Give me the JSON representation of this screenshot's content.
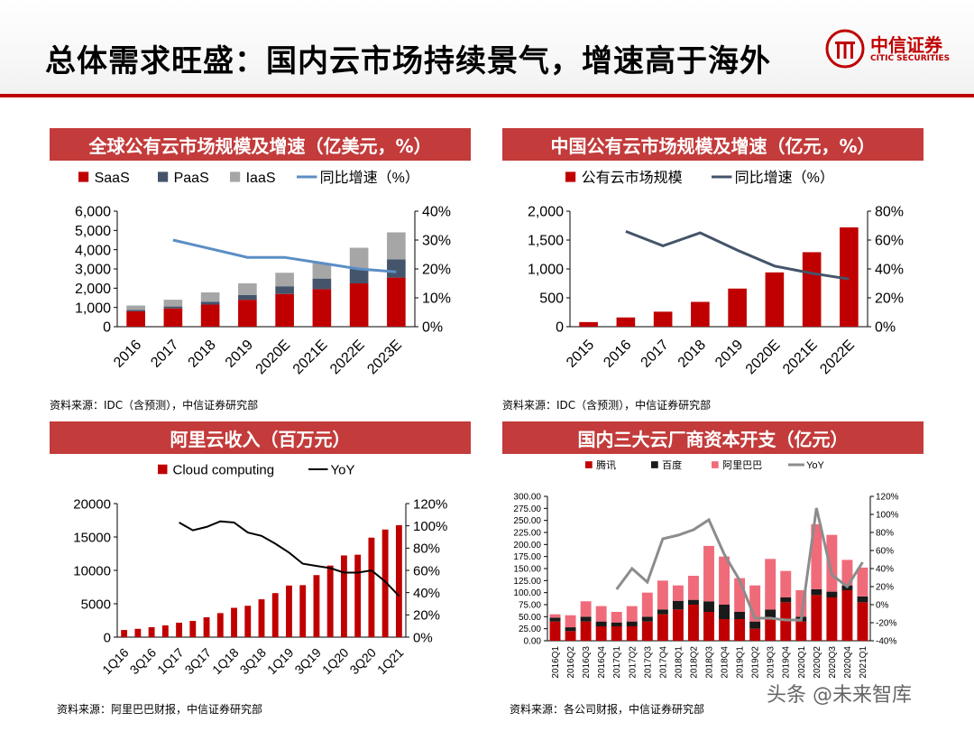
{
  "page": {
    "title": "总体需求旺盛：国内云市场持续景气，增速高于海外",
    "logo_cn": "中信证券",
    "logo_en": "CITIC SECURITIES",
    "watermark": "头条 @未来智库"
  },
  "panels": {
    "p1": {
      "title": "全球公有云市场规模及增速（亿美元，%）",
      "source": "资料来源：IDC（含预测），中信证券研究部"
    },
    "p2": {
      "title": "中国公有云市场规模及增速（亿元，%）",
      "source": "资料来源：IDC（含预测），中信证券研究部"
    },
    "p3": {
      "title": "阿里云收入（百万元）",
      "source": "资料来源：阿里巴巴财报，中信证券研究部"
    },
    "p4": {
      "title": "国内三大云厂商资本开支（亿元）",
      "source": "资料来源：各公司财报，中信证券研究部"
    }
  },
  "chart_data": [
    {
      "type": "bar",
      "stacked": true,
      "categories": [
        "2016",
        "2017",
        "2018",
        "2019",
        "2020E",
        "2021E",
        "2022E",
        "2023E"
      ],
      "series": [
        {
          "name": "SaaS",
          "kind": "bar",
          "color": "#c00000",
          "values": [
            800,
            950,
            1150,
            1400,
            1700,
            1950,
            2250,
            2550
          ]
        },
        {
          "name": "PaaS",
          "kind": "bar",
          "color": "#44546a",
          "values": [
            70,
            100,
            150,
            250,
            400,
            550,
            750,
            950
          ]
        },
        {
          "name": "IaaS",
          "kind": "bar",
          "color": "#a6a6a6",
          "values": [
            230,
            350,
            480,
            600,
            700,
            800,
            1100,
            1400
          ]
        },
        {
          "name": "同比增速（%）",
          "kind": "line",
          "axis": "right",
          "color": "#5b8ec4",
          "values": [
            null,
            30,
            27,
            24,
            24,
            22,
            20,
            19
          ]
        }
      ],
      "yleft": {
        "min": 0,
        "max": 6000,
        "ticks": [
          "0",
          "1,000",
          "2,000",
          "3,000",
          "4,000",
          "5,000",
          "6,000"
        ]
      },
      "yright": {
        "min": 0,
        "max": 40,
        "ticks": [
          "0%",
          "10%",
          "20%",
          "30%",
          "40%"
        ]
      }
    },
    {
      "type": "bar",
      "categories": [
        "2015",
        "2016",
        "2017",
        "2018",
        "2019",
        "2020E",
        "2021E",
        "2022E"
      ],
      "series": [
        {
          "name": "公有云市场规模",
          "kind": "bar",
          "color": "#c00000",
          "values": [
            80,
            160,
            260,
            430,
            660,
            940,
            1290,
            1720
          ]
        },
        {
          "name": "同比增速（%）",
          "kind": "line",
          "axis": "right",
          "color": "#44546a",
          "values": [
            null,
            66,
            56,
            65,
            53,
            42,
            37,
            33
          ]
        }
      ],
      "yleft": {
        "min": 0,
        "max": 2000,
        "ticks": [
          "0",
          "500",
          "1,000",
          "1,500",
          "2,000"
        ]
      },
      "yright": {
        "min": 0,
        "max": 80,
        "ticks": [
          "0%",
          "20%",
          "40%",
          "60%",
          "80%"
        ]
      }
    },
    {
      "type": "bar",
      "categories": [
        "1Q16",
        "2Q16",
        "3Q16",
        "4Q16",
        "1Q17",
        "2Q17",
        "3Q17",
        "4Q17",
        "1Q18",
        "2Q18",
        "3Q18",
        "4Q18",
        "1Q19",
        "2Q19",
        "3Q19",
        "4Q19",
        "1Q20",
        "2Q20",
        "3Q20",
        "4Q20",
        "1Q21"
      ],
      "xlabels_shown": [
        "1Q16",
        "3Q16",
        "1Q17",
        "3Q17",
        "1Q18",
        "3Q18",
        "1Q19",
        "3Q19",
        "1Q20",
        "3Q20",
        "1Q21"
      ],
      "series": [
        {
          "name": "Cloud computing",
          "kind": "bar",
          "color": "#c00000",
          "values": [
            1066,
            1243,
            1490,
            1764,
            2160,
            2430,
            2975,
            3599,
            4390,
            4698,
            5667,
            6595,
            7728,
            7787,
            9291,
            10721,
            12232,
            12345,
            14899,
            16115,
            16765
          ]
        },
        {
          "name": "YoY",
          "kind": "line",
          "axis": "right",
          "color": "#000000",
          "values": [
            null,
            null,
            null,
            null,
            103,
            96,
            99,
            104,
            103,
            94,
            91,
            84,
            76,
            66,
            64,
            62,
            58,
            58,
            60,
            50,
            37
          ]
        }
      ],
      "yleft": {
        "min": 0,
        "max": 20000,
        "ticks": [
          "0",
          "5000",
          "10000",
          "15000",
          "20000"
        ]
      },
      "yright": {
        "min": 0,
        "max": 120,
        "ticks": [
          "0%",
          "20%",
          "40%",
          "60%",
          "80%",
          "100%",
          "120%"
        ]
      }
    },
    {
      "type": "bar",
      "stacked": true,
      "categories": [
        "2016Q1",
        "2016Q2",
        "2016Q3",
        "2016Q4",
        "2017Q1",
        "2017Q2",
        "2017Q3",
        "2017Q4",
        "2018Q1",
        "2018Q2",
        "2018Q3",
        "2018Q4",
        "2019Q1",
        "2019Q2",
        "2019Q3",
        "2019Q4",
        "2020Q1",
        "2020Q2",
        "2020Q3",
        "2020Q4",
        "2021Q1"
      ],
      "series": [
        {
          "name": "腾讯",
          "kind": "bar",
          "color": "#c00000",
          "values": [
            40,
            20,
            40,
            30,
            30,
            30,
            40,
            55,
            65,
            75,
            60,
            45,
            45,
            25,
            45,
            80,
            40,
            95,
            90,
            105,
            80
          ]
        },
        {
          "name": "百度",
          "kind": "bar",
          "color": "#1a1a1a",
          "values": [
            8,
            8,
            10,
            10,
            8,
            10,
            10,
            10,
            18,
            10,
            22,
            30,
            15,
            15,
            20,
            10,
            10,
            12,
            12,
            10,
            12
          ]
        },
        {
          "name": "阿里巴巴",
          "kind": "bar",
          "color": "#f06b7a",
          "values": [
            7,
            25,
            32,
            32,
            22,
            32,
            50,
            60,
            32,
            50,
            115,
            100,
            70,
            75,
            105,
            55,
            55,
            135,
            118,
            53,
            60
          ]
        },
        {
          "name": "YoY",
          "kind": "line",
          "axis": "right",
          "color": "#8c8c8c",
          "values": [
            null,
            null,
            null,
            null,
            17,
            40,
            25,
            73,
            77,
            83,
            94,
            56,
            27,
            -15,
            -15,
            -17,
            -17,
            107,
            33,
            20,
            47
          ]
        }
      ],
      "yleft": {
        "min": 0,
        "max": 300,
        "ticks": [
          "0.00",
          "25.00",
          "50.00",
          "75.00",
          "100.00",
          "125.00",
          "150.00",
          "175.00",
          "200.00",
          "225.00",
          "250.00",
          "275.00",
          "300.00"
        ]
      },
      "yright": {
        "min": -40,
        "max": 120,
        "ticks": [
          "-40%",
          "-20%",
          "0%",
          "20%",
          "40%",
          "60%",
          "80%",
          "100%",
          "120%"
        ]
      }
    }
  ]
}
